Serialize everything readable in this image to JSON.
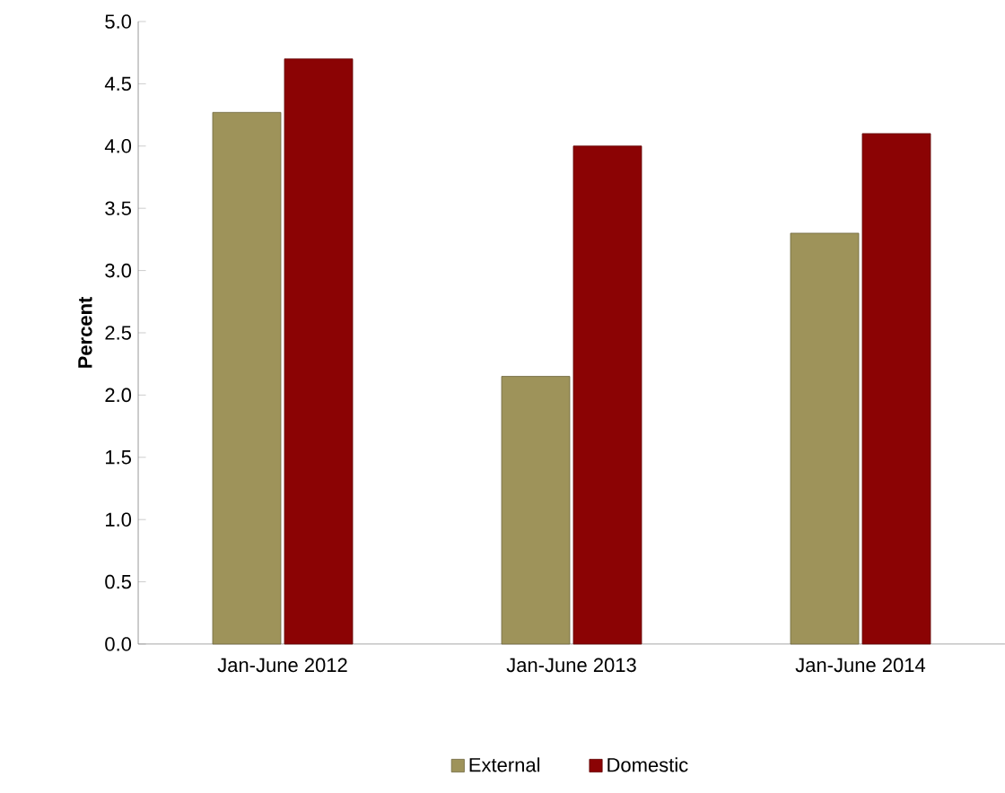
{
  "chart_data": {
    "type": "bar",
    "ylabel": "Percent",
    "categories": [
      "Jan-June 2012",
      "Jan-June 2013",
      "Jan-June 2014"
    ],
    "series": [
      {
        "name": "External",
        "color": "#9e935a",
        "values": [
          4.27,
          2.15,
          3.3
        ]
      },
      {
        "name": "Domestic",
        "color": "#8b0304",
        "values": [
          4.7,
          4.0,
          4.1
        ]
      }
    ],
    "ylim": [
      0,
      5
    ],
    "yticks": [
      {
        "value": 0,
        "label": "0.0"
      },
      0.5,
      {
        "value": 1,
        "label": "1.0"
      },
      1.5,
      {
        "value": 2,
        "label": "2.0"
      },
      2.5,
      {
        "value": 3,
        "label": "3.0"
      },
      3.5,
      {
        "value": 4,
        "label": "4.0"
      },
      4.5,
      {
        "value": 5,
        "label": "5.0"
      }
    ],
    "legend": "bottom",
    "grid": false
  }
}
